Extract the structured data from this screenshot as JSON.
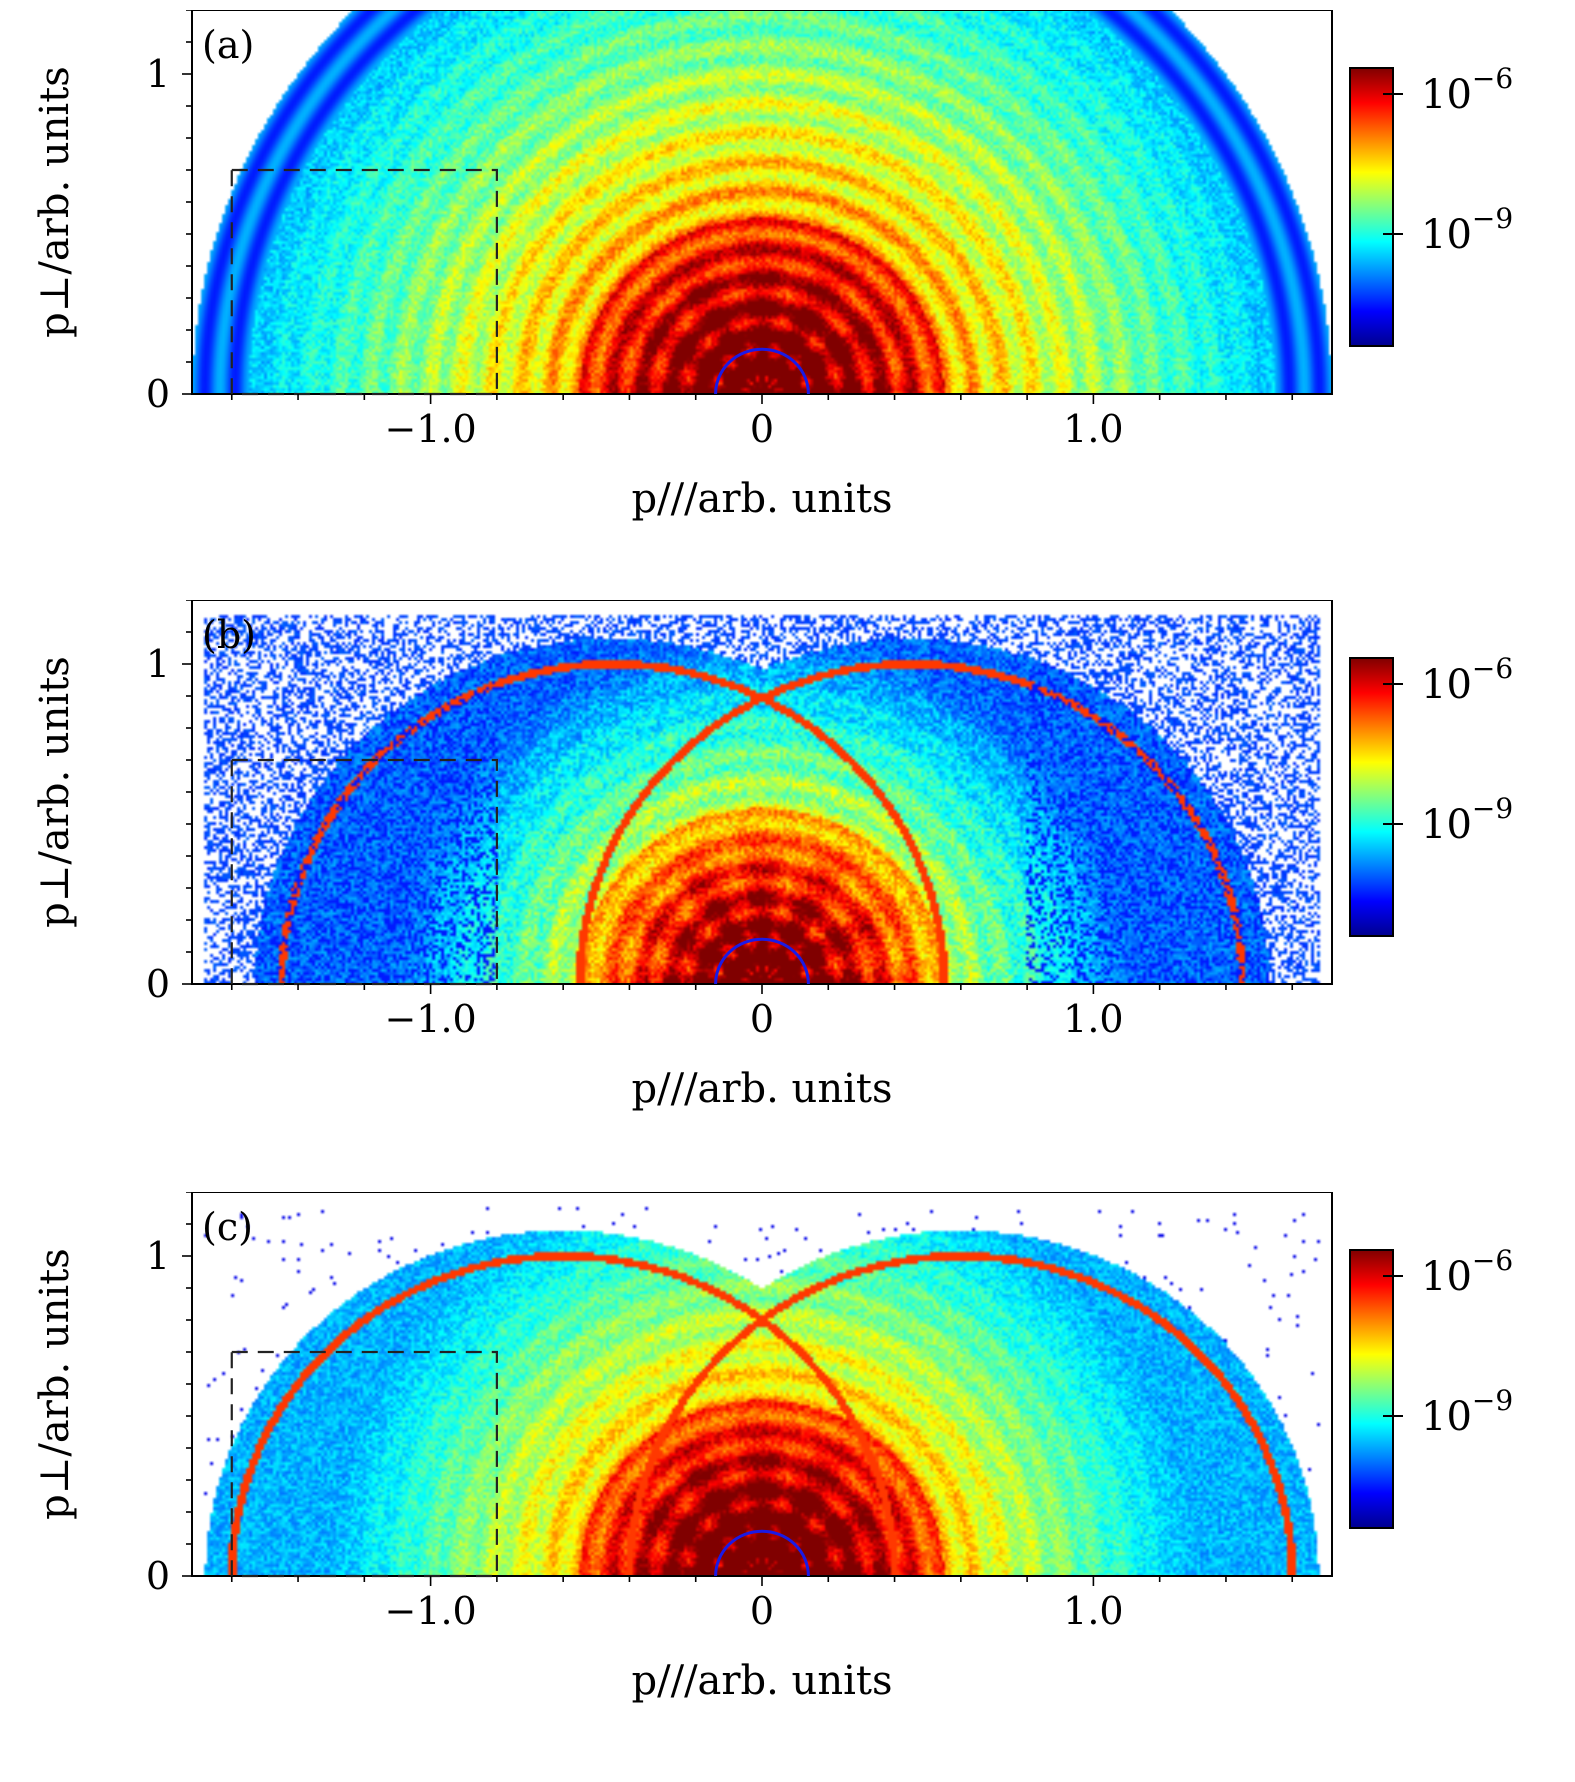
{
  "chart_data": [
    {
      "type": "heatmap",
      "panel_label": "(a)",
      "xlabel": "p///arb. units",
      "ylabel": "p⊥/arb. units",
      "xlim": [
        -1.72,
        1.72
      ],
      "ylim": [
        0,
        1.2
      ],
      "x_ticks": [
        {
          "value": -1.0,
          "label": "−1.0"
        },
        {
          "value": 0,
          "label": "0"
        },
        {
          "value": 1.0,
          "label": "1.0"
        }
      ],
      "y_ticks": [
        {
          "value": 0,
          "label": "0"
        },
        {
          "value": 1,
          "label": "1"
        }
      ],
      "colorbar": {
        "scale": "log",
        "ticks": [
          {
            "value": 1e-06,
            "label": "10",
            "exp": "−6"
          },
          {
            "value": 1e-09,
            "label": "10",
            "exp": "−9"
          }
        ]
      },
      "dashed_box": {
        "x0": -1.6,
        "x1": -0.8,
        "y0": 0,
        "y1": 0.7
      },
      "semicircle_radius": 0.14,
      "outer_radius": 1.72,
      "pattern": "rings"
    },
    {
      "type": "heatmap",
      "panel_label": "(b)",
      "xlabel": "p///arb. units",
      "ylabel": "p⊥/arb. units",
      "xlim": [
        -1.72,
        1.72
      ],
      "ylim": [
        0,
        1.2
      ],
      "x_ticks": [
        {
          "value": -1.0,
          "label": "−1.0"
        },
        {
          "value": 0,
          "label": "0"
        },
        {
          "value": 1.0,
          "label": "1.0"
        }
      ],
      "y_ticks": [
        {
          "value": 0,
          "label": "0"
        },
        {
          "value": 1,
          "label": "1"
        }
      ],
      "colorbar": {
        "scale": "log",
        "ticks": [
          {
            "value": 1e-06,
            "label": "10",
            "exp": "−6"
          },
          {
            "value": 1e-09,
            "label": "10",
            "exp": "−9"
          }
        ]
      },
      "dashed_box": {
        "x0": -1.6,
        "x1": -0.8,
        "y0": 0,
        "y1": 0.7
      },
      "semicircle_radius": 0.14,
      "outer_radius": 1.05,
      "pattern": "noisy"
    },
    {
      "type": "heatmap",
      "panel_label": "(c)",
      "xlabel": "p///arb. units",
      "ylabel": "p⊥/arb. units",
      "xlim": [
        -1.72,
        1.72
      ],
      "ylim": [
        0,
        1.2
      ],
      "x_ticks": [
        {
          "value": -1.0,
          "label": "−1.0"
        },
        {
          "value": 0,
          "label": "0"
        },
        {
          "value": 1.0,
          "label": "1.0"
        }
      ],
      "y_ticks": [
        {
          "value": 0,
          "label": "0"
        },
        {
          "value": 1,
          "label": "1"
        }
      ],
      "colorbar": {
        "scale": "log",
        "ticks": [
          {
            "value": 1e-06,
            "label": "10",
            "exp": "−6"
          },
          {
            "value": 1e-09,
            "label": "10",
            "exp": "−9"
          }
        ]
      },
      "dashed_box": {
        "x0": -1.6,
        "x1": -0.8,
        "y0": 0,
        "y1": 0.7
      },
      "semicircle_radius": 0.14,
      "outer_radius": 1.68,
      "pattern": "dome"
    }
  ],
  "colors": {
    "ring_semicircle": "#1a1ae6",
    "colormap": [
      "#00008f",
      "#0000ff",
      "#0080ff",
      "#00ffff",
      "#80ff80",
      "#ffff00",
      "#ff8000",
      "#ff0000",
      "#800000"
    ]
  }
}
